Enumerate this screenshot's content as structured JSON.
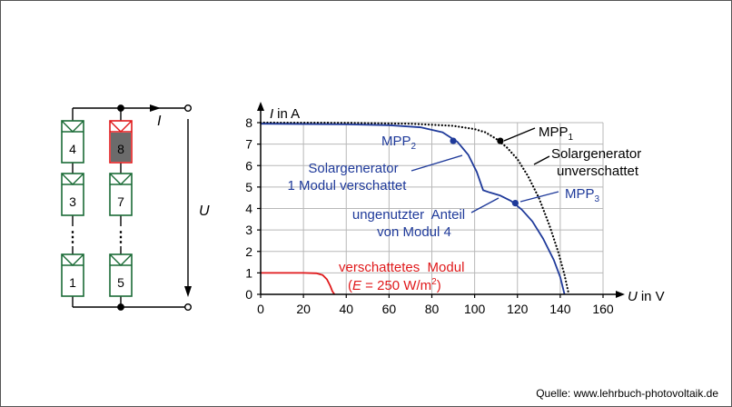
{
  "colors": {
    "green": "#1a6b36",
    "red": "#e0191b",
    "blue": "#1f3a9a",
    "black": "#000000",
    "shade_gray": "#6b6b6b"
  },
  "circuit": {
    "current_label": "I",
    "voltage_label": "U",
    "left_string": [
      "4",
      "3",
      "1"
    ],
    "right_string": [
      "8",
      "7",
      "5"
    ],
    "shaded_module": "8",
    "dots": "⋮"
  },
  "chart_data": {
    "type": "line",
    "xlabel_var": "U",
    "xlabel_unit": "in V",
    "ylabel_var": "I",
    "ylabel_unit": "in A",
    "xlim": [
      0,
      160
    ],
    "ylim": [
      0,
      8
    ],
    "xticks": [
      "0",
      "20",
      "40",
      "60",
      "80",
      "100",
      "120",
      "140",
      "160"
    ],
    "yticks": [
      "0",
      "1",
      "2",
      "3",
      "4",
      "5",
      "6",
      "7",
      "8"
    ],
    "series": [
      {
        "name": "Solargenerator unverschattet",
        "style": "dotted",
        "color": "#000000",
        "points": [
          [
            0,
            8.0
          ],
          [
            40,
            7.99
          ],
          [
            70,
            7.95
          ],
          [
            90,
            7.85
          ],
          [
            100,
            7.7
          ],
          [
            105,
            7.55
          ],
          [
            110,
            7.25
          ],
          [
            115,
            6.85
          ],
          [
            120,
            6.3
          ],
          [
            125,
            5.5
          ],
          [
            130,
            4.5
          ],
          [
            135,
            3.2
          ],
          [
            139,
            2.0
          ],
          [
            142,
            0.9
          ],
          [
            144,
            0
          ]
        ]
      },
      {
        "name": "Solargenerator 1 Modul verschattet",
        "style": "solid",
        "color": "#1f3a9a",
        "points": [
          [
            0,
            7.95
          ],
          [
            40,
            7.92
          ],
          [
            60,
            7.88
          ],
          [
            75,
            7.78
          ],
          [
            85,
            7.55
          ],
          [
            92,
            7.1
          ],
          [
            97,
            6.5
          ],
          [
            101,
            5.7
          ],
          [
            104,
            4.85
          ],
          [
            107,
            4.75
          ],
          [
            112,
            4.6
          ],
          [
            117,
            4.35
          ],
          [
            122,
            3.95
          ],
          [
            127,
            3.4
          ],
          [
            132,
            2.6
          ],
          [
            137,
            1.6
          ],
          [
            140,
            0.8
          ],
          [
            142,
            0
          ]
        ]
      },
      {
        "name": "verschattetes Modul",
        "style": "solid",
        "color": "#e0191b",
        "points": [
          [
            0,
            1.0
          ],
          [
            20,
            1.0
          ],
          [
            26,
            0.98
          ],
          [
            29,
            0.9
          ],
          [
            31,
            0.7
          ],
          [
            32.5,
            0.4
          ],
          [
            33.5,
            0.15
          ],
          [
            34.5,
            0
          ]
        ]
      }
    ],
    "points": [
      {
        "label": "MPP",
        "sub": "1",
        "x": 112,
        "y": 7.15,
        "color": "#000000"
      },
      {
        "label": "MPP",
        "sub": "2",
        "x": 90,
        "y": 7.15,
        "color": "#1f3a9a"
      },
      {
        "label": "MPP",
        "sub": "3",
        "x": 119,
        "y": 4.25,
        "color": "#1f3a9a"
      }
    ],
    "annotations": {
      "unshaded_line1": "Solargenerator",
      "unshaded_line2": "unverschattet",
      "shaded_line1": "Solargenerator",
      "shaded_line2": "1 Modul verschattet",
      "unused_line1": "ungenutzter  Anteil",
      "unused_line2": "von Modul 4",
      "shaded_module_line1": "verschattetes  Modul",
      "shaded_module_var": "E",
      "shaded_module_eq": " = 250 W/m",
      "shaded_module_sup": "2",
      "shaded_module_close": ")",
      "shaded_module_open": "("
    }
  },
  "source": "Quelle: www.lehrbuch-photovoltaik.de"
}
